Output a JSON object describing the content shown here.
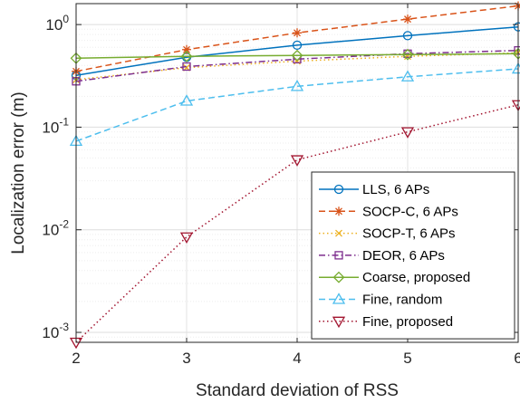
{
  "chart_data": {
    "type": "line",
    "title": "",
    "xlabel": "Standard deviation of RSS",
    "ylabel": "Localization error (m)",
    "yscale": "log",
    "xlim": [
      2,
      6
    ],
    "ylim": [
      0.0008,
      1.6
    ],
    "grid": true,
    "legend_position": "bottom-right",
    "x": [
      2,
      3,
      4,
      5,
      6
    ],
    "x_ticks": [
      {
        "value": 2,
        "label": "2"
      },
      {
        "value": 3,
        "label": "3"
      },
      {
        "value": 4,
        "label": "4"
      },
      {
        "value": 5,
        "label": "5"
      },
      {
        "value": 6,
        "label": "6"
      }
    ],
    "y_ticks": [
      {
        "value": 0.001,
        "base": "10",
        "exp": "-3"
      },
      {
        "value": 0.01,
        "base": "10",
        "exp": "-2"
      },
      {
        "value": 0.1,
        "base": "10",
        "exp": "-1"
      },
      {
        "value": 1,
        "base": "10",
        "exp": "0"
      }
    ],
    "series": [
      {
        "name": "LLS, 6 APs",
        "color": "#0072BD",
        "dash": "solid",
        "marker": "circle",
        "values": [
          0.32,
          0.48,
          0.63,
          0.78,
          0.95
        ]
      },
      {
        "name": "SOCP-C, 6 APs",
        "color": "#D95319",
        "dash": "dashed",
        "marker": "asterisk",
        "values": [
          0.35,
          0.57,
          0.83,
          1.13,
          1.52
        ]
      },
      {
        "name": "SOCP-T, 6 APs",
        "color": "#EDB120",
        "dash": "dotted",
        "marker": "x",
        "values": [
          0.29,
          0.38,
          0.44,
          0.49,
          0.53
        ]
      },
      {
        "name": "DEOR, 6 APs",
        "color": "#7E2F8E",
        "dash": "dashdot",
        "marker": "square",
        "values": [
          0.28,
          0.39,
          0.46,
          0.52,
          0.56
        ]
      },
      {
        "name": "Coarse, proposed",
        "color": "#77AC30",
        "dash": "solid",
        "marker": "diamond",
        "values": [
          0.47,
          0.49,
          0.5,
          0.51,
          0.52
        ]
      },
      {
        "name": "Fine, random",
        "color": "#4DBEEE",
        "dash": "dashed",
        "marker": "triangle-up",
        "values": [
          0.073,
          0.18,
          0.25,
          0.31,
          0.37
        ]
      },
      {
        "name": "Fine, proposed",
        "color": "#A2142F",
        "dash": "dotted",
        "marker": "triangle-down",
        "values": [
          0.0008,
          0.0085,
          0.048,
          0.09,
          0.165
        ]
      }
    ]
  }
}
